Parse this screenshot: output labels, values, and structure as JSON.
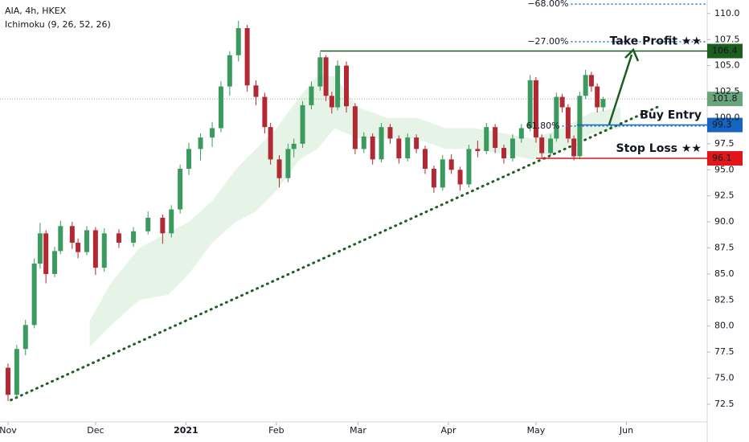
{
  "chart_data": {
    "type": "candlestick",
    "title": "AIA, 4h, HKEX",
    "subtitle": "Ichimoku (9, 26, 52, 26)",
    "up_color": "#3b9a5e",
    "down_color": "#b22833",
    "xlim": [
      -2.75,
      239.7
    ],
    "xticks": [
      {
        "value": 0,
        "label": "Nov"
      },
      {
        "value": 30,
        "label": "Dec"
      },
      {
        "value": 61,
        "label": "2021"
      },
      {
        "value": 92,
        "label": "Feb"
      },
      {
        "value": 120,
        "label": "Mar"
      },
      {
        "value": 151,
        "label": "Apr"
      },
      {
        "value": 181,
        "label": "May"
      },
      {
        "value": 212,
        "label": "Jun"
      }
    ],
    "ylim": [
      70.8,
      111.3
    ],
    "yticks": [
      72.5,
      {
        "value": 75,
        "label": "75.0"
      },
      77.5,
      {
        "value": 80,
        "label": "80.0"
      },
      82.5,
      {
        "value": 85,
        "label": "85.0"
      },
      87.5,
      {
        "value": 90,
        "label": "90.0"
      },
      92.5,
      {
        "value": 95,
        "label": "95.0"
      },
      97.5,
      {
        "value": 100,
        "label": "100.0"
      },
      102.5,
      {
        "value": 105,
        "label": "105.0"
      },
      107.5,
      {
        "value": 110,
        "label": "110.0"
      }
    ],
    "x": [
      0,
      3,
      6,
      9,
      11,
      13,
      16,
      18,
      22,
      24,
      27,
      30,
      33,
      38,
      43,
      48,
      53,
      56,
      59,
      62,
      66,
      70,
      73,
      76,
      79,
      82,
      85,
      88,
      90,
      93,
      96,
      98,
      101,
      104,
      107,
      109,
      111,
      113,
      116,
      119,
      122,
      125,
      128,
      131,
      134,
      137,
      140,
      143,
      146,
      149,
      152,
      155,
      158,
      161,
      164,
      167,
      170,
      173,
      176,
      179,
      181,
      183,
      186,
      188,
      190,
      192,
      194,
      196,
      198,
      200,
      202,
      204
    ],
    "open": [
      76.0,
      73.4,
      77.8,
      80.1,
      86.0,
      88.9,
      85.0,
      87.2,
      89.6,
      88.0,
      87.1,
      89.2,
      85.6,
      88.9,
      88.0,
      89.1,
      90.4,
      88.9,
      91.2,
      95.1,
      97.0,
      98.1,
      99.0,
      103.0,
      106.0,
      108.6,
      103.1,
      102.0,
      99.1,
      96.0,
      94.2,
      97.0,
      97.5,
      101.2,
      103.0,
      105.8,
      102.1,
      101.0,
      105.0,
      101.1,
      97.0,
      98.2,
      96.0,
      99.1,
      98.0,
      96.1,
      98.1,
      97.0,
      95.1,
      93.3,
      96.0,
      95.0,
      93.6,
      97.0,
      96.8,
      99.1,
      97.1,
      96.1,
      98.0,
      99.0,
      103.6,
      98.1,
      96.6,
      98.0,
      102.0,
      101.0,
      98.0,
      96.3,
      102.1,
      104.1,
      103.0,
      101.0
    ],
    "high": [
      76.4,
      78.2,
      80.6,
      86.5,
      89.9,
      89.2,
      87.6,
      90.1,
      90.0,
      88.4,
      89.6,
      89.5,
      89.4,
      89.3,
      89.5,
      91.0,
      90.7,
      91.6,
      95.5,
      97.6,
      98.5,
      99.6,
      103.5,
      106.4,
      109.3,
      108.9,
      103.6,
      102.4,
      99.5,
      96.4,
      97.5,
      98.0,
      101.6,
      103.5,
      106.3,
      106.0,
      102.5,
      105.5,
      105.4,
      101.4,
      98.6,
      98.5,
      99.5,
      99.4,
      98.3,
      98.5,
      98.4,
      97.3,
      95.4,
      96.4,
      96.5,
      95.3,
      97.4,
      97.8,
      99.5,
      99.4,
      97.4,
      98.4,
      99.4,
      104.1,
      103.9,
      98.4,
      98.4,
      102.4,
      102.3,
      101.3,
      98.3,
      102.5,
      104.6,
      104.4,
      103.3,
      102.0
    ],
    "low": [
      72.8,
      73.1,
      77.2,
      79.8,
      85.5,
      84.1,
      84.7,
      86.9,
      87.4,
      86.5,
      86.8,
      84.9,
      85.2,
      87.5,
      87.6,
      88.8,
      87.9,
      88.5,
      90.8,
      94.5,
      95.9,
      97.2,
      98.6,
      102.1,
      105.4,
      102.5,
      101.2,
      98.5,
      95.5,
      93.3,
      93.8,
      96.2,
      97.1,
      100.8,
      102.6,
      101.6,
      100.4,
      100.7,
      100.5,
      96.5,
      96.6,
      95.5,
      95.7,
      97.5,
      95.6,
      95.8,
      96.6,
      94.6,
      92.8,
      93.0,
      94.6,
      93.0,
      93.3,
      96.2,
      96.5,
      96.6,
      95.6,
      95.8,
      97.6,
      98.7,
      97.6,
      96.1,
      96.3,
      97.7,
      100.5,
      97.6,
      95.9,
      96.0,
      101.8,
      102.5,
      100.5,
      100.6
    ],
    "close": [
      73.4,
      77.8,
      80.1,
      86.0,
      88.9,
      85.0,
      87.2,
      89.6,
      88.0,
      87.1,
      89.2,
      85.6,
      88.9,
      88.0,
      89.1,
      90.4,
      88.9,
      91.2,
      95.1,
      97.0,
      98.1,
      99.0,
      103.0,
      106.0,
      108.6,
      103.1,
      102.0,
      99.1,
      96.0,
      94.2,
      97.0,
      97.5,
      101.2,
      103.0,
      105.8,
      102.1,
      101.0,
      105.0,
      101.1,
      97.0,
      98.2,
      96.0,
      99.1,
      98.0,
      96.1,
      98.1,
      97.0,
      95.1,
      93.3,
      96.0,
      95.0,
      93.6,
      97.0,
      96.8,
      99.1,
      97.1,
      96.1,
      98.0,
      99.0,
      103.6,
      98.1,
      96.6,
      98.0,
      102.0,
      101.0,
      98.0,
      96.3,
      102.1,
      104.1,
      103.0,
      101.0,
      101.8
    ],
    "cloud": {
      "color": "#c8e6c9",
      "x": [
        28,
        35,
        45,
        55,
        62,
        70,
        78,
        85,
        92,
        100,
        106,
        112,
        120,
        130,
        140,
        150,
        160,
        170,
        180,
        190,
        200,
        210
      ],
      "upper": [
        80.5,
        84,
        87.5,
        89,
        90,
        92,
        95,
        97,
        99,
        102,
        104,
        104,
        101,
        100,
        100,
        99,
        99,
        98.5,
        98,
        99,
        100.5,
        101
      ],
      "lower": [
        78,
        80,
        82.5,
        83,
        85,
        88,
        90,
        91,
        93,
        96,
        97,
        99,
        98,
        98,
        98,
        97,
        97,
        96.5,
        96,
        97,
        98.5,
        99
      ]
    },
    "trendline": {
      "x": [
        1,
        224
      ],
      "y": [
        72.9,
        101.2
      ],
      "color": "#1b5e20"
    },
    "current_price": {
      "value": 101.8,
      "label": "101.8",
      "color": "#6aa57c"
    },
    "levels": [
      {
        "name": "Take Profit ★★",
        "value": 106.4,
        "start": 107,
        "color": "#1b5e20"
      },
      {
        "name": "Buy Entry",
        "value": 99.3,
        "start": 195,
        "color": "#1565c0"
      },
      {
        "name": "Stop Loss ★★",
        "value": 96.1,
        "start": 181,
        "color": "#e0161b"
      }
    ],
    "fib_levels": [
      {
        "label": "−68.00%",
        "value": 110.9,
        "start": 193
      },
      {
        "label": "−27.00%",
        "value": 107.3,
        "start": 193
      },
      {
        "label": "61.80%",
        "value": 99.2,
        "start": 190
      }
    ],
    "fib_color": "#1e70c8"
  }
}
